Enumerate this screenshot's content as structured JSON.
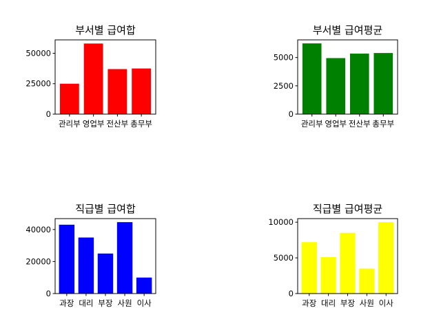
{
  "chart_data": [
    {
      "type": "bar",
      "title": "부서별 급여합",
      "categories": [
        "관리부",
        "영업부",
        "전산부",
        "총무부"
      ],
      "values": [
        25000,
        58000,
        37000,
        37500
      ],
      "color": "#ff0000",
      "ylim": [
        0,
        61000
      ],
      "yticks": [
        0,
        25000,
        50000
      ],
      "ytick_labels": [
        "0",
        "25000",
        "50000"
      ],
      "xlabel": "",
      "ylabel": ""
    },
    {
      "type": "bar",
      "title": "부서별 급여평균",
      "categories": [
        "관리부",
        "영업부",
        "전산부",
        "총무부"
      ],
      "values": [
        6250,
        4950,
        5350,
        5400
      ],
      "color": "#008000",
      "ylim": [
        0,
        6560
      ],
      "yticks": [
        0,
        2500,
        5000
      ],
      "ytick_labels": [
        "0",
        "2500",
        "5000"
      ],
      "xlabel": "",
      "ylabel": ""
    },
    {
      "type": "bar",
      "title": "직급별 급여합",
      "categories": [
        "과장",
        "대리",
        "부장",
        "사원",
        "이사"
      ],
      "values": [
        43000,
        35000,
        25000,
        44600,
        10000
      ],
      "color": "#0000ff",
      "ylim": [
        0,
        46800
      ],
      "yticks": [
        0,
        20000,
        40000
      ],
      "ytick_labels": [
        "0",
        "20000",
        "40000"
      ],
      "xlabel": "",
      "ylabel": ""
    },
    {
      "type": "bar",
      "title": "직급별 급여평균",
      "categories": [
        "과장",
        "대리",
        "부장",
        "사원",
        "이사"
      ],
      "values": [
        7200,
        5100,
        8500,
        3500,
        10000
      ],
      "color": "#ffff00",
      "ylim": [
        0,
        10500
      ],
      "yticks": [
        0,
        5000,
        10000
      ],
      "ytick_labels": [
        "0",
        "5000",
        "10000"
      ],
      "xlabel": "",
      "ylabel": ""
    }
  ]
}
